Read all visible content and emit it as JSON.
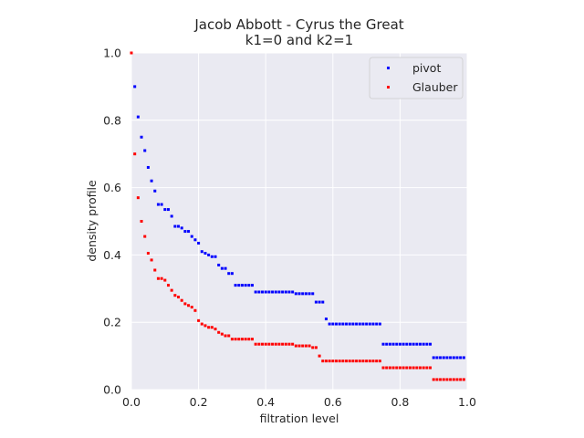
{
  "chart_data": {
    "type": "scatter",
    "title": "Jacob Abbott - Cyrus the Great",
    "subtitle": "k1=0 and k2=1",
    "xlabel": "filtration level",
    "ylabel": "density profile",
    "xlim": [
      0.0,
      1.0
    ],
    "ylim": [
      0.0,
      1.0
    ],
    "xticks": [
      "0.0",
      "0.2",
      "0.4",
      "0.6",
      "0.8",
      "1.0"
    ],
    "yticks": [
      "0.0",
      "0.2",
      "0.4",
      "0.6",
      "0.8",
      "1.0"
    ],
    "grid": true,
    "legend_position": "top-right",
    "background": "#eaeaf2",
    "series": [
      {
        "name": "pivot",
        "color": "#0000ff",
        "x": [
          0.0,
          0.01,
          0.02,
          0.03,
          0.04,
          0.05,
          0.06,
          0.07,
          0.08,
          0.09,
          0.1,
          0.11,
          0.12,
          0.13,
          0.14,
          0.15,
          0.16,
          0.17,
          0.18,
          0.19,
          0.2,
          0.21,
          0.22,
          0.23,
          0.24,
          0.25,
          0.26,
          0.27,
          0.28,
          0.29,
          0.3,
          0.31,
          0.32,
          0.33,
          0.34,
          0.35,
          0.36,
          0.37,
          0.38,
          0.39,
          0.4,
          0.41,
          0.42,
          0.43,
          0.44,
          0.45,
          0.46,
          0.47,
          0.48,
          0.49,
          0.5,
          0.51,
          0.52,
          0.53,
          0.54,
          0.55,
          0.56,
          0.57,
          0.58,
          0.59,
          0.6,
          0.61,
          0.62,
          0.63,
          0.64,
          0.65,
          0.66,
          0.67,
          0.68,
          0.69,
          0.7,
          0.71,
          0.72,
          0.73,
          0.74,
          0.75,
          0.76,
          0.77,
          0.78,
          0.79,
          0.8,
          0.81,
          0.82,
          0.83,
          0.84,
          0.85,
          0.86,
          0.87,
          0.88,
          0.89,
          0.9,
          0.91,
          0.92,
          0.93,
          0.94,
          0.95,
          0.96,
          0.97,
          0.98,
          0.99
        ],
        "y": [
          1.0,
          0.9,
          0.81,
          0.75,
          0.71,
          0.66,
          0.62,
          0.59,
          0.55,
          0.55,
          0.535,
          0.535,
          0.515,
          0.485,
          0.485,
          0.48,
          0.47,
          0.47,
          0.455,
          0.445,
          0.435,
          0.41,
          0.405,
          0.4,
          0.395,
          0.395,
          0.37,
          0.36,
          0.36,
          0.345,
          0.345,
          0.31,
          0.31,
          0.31,
          0.31,
          0.31,
          0.31,
          0.29,
          0.29,
          0.29,
          0.29,
          0.29,
          0.29,
          0.29,
          0.29,
          0.29,
          0.29,
          0.29,
          0.29,
          0.285,
          0.285,
          0.285,
          0.285,
          0.285,
          0.285,
          0.26,
          0.26,
          0.26,
          0.21,
          0.195,
          0.195,
          0.195,
          0.195,
          0.195,
          0.195,
          0.195,
          0.195,
          0.195,
          0.195,
          0.195,
          0.195,
          0.195,
          0.195,
          0.195,
          0.195,
          0.135,
          0.135,
          0.135,
          0.135,
          0.135,
          0.135,
          0.135,
          0.135,
          0.135,
          0.135,
          0.135,
          0.135,
          0.135,
          0.135,
          0.135,
          0.095,
          0.095,
          0.095,
          0.095,
          0.095,
          0.095,
          0.095,
          0.095,
          0.095,
          0.095
        ]
      },
      {
        "name": "Glauber",
        "color": "#ff0000",
        "x": [
          0.0,
          0.01,
          0.02,
          0.03,
          0.04,
          0.05,
          0.06,
          0.07,
          0.08,
          0.09,
          0.1,
          0.11,
          0.12,
          0.13,
          0.14,
          0.15,
          0.16,
          0.17,
          0.18,
          0.19,
          0.2,
          0.21,
          0.22,
          0.23,
          0.24,
          0.25,
          0.26,
          0.27,
          0.28,
          0.29,
          0.3,
          0.31,
          0.32,
          0.33,
          0.34,
          0.35,
          0.36,
          0.37,
          0.38,
          0.39,
          0.4,
          0.41,
          0.42,
          0.43,
          0.44,
          0.45,
          0.46,
          0.47,
          0.48,
          0.49,
          0.5,
          0.51,
          0.52,
          0.53,
          0.54,
          0.55,
          0.56,
          0.57,
          0.58,
          0.59,
          0.6,
          0.61,
          0.62,
          0.63,
          0.64,
          0.65,
          0.66,
          0.67,
          0.68,
          0.69,
          0.7,
          0.71,
          0.72,
          0.73,
          0.74,
          0.75,
          0.76,
          0.77,
          0.78,
          0.79,
          0.8,
          0.81,
          0.82,
          0.83,
          0.84,
          0.85,
          0.86,
          0.87,
          0.88,
          0.89,
          0.9,
          0.91,
          0.92,
          0.93,
          0.94,
          0.95,
          0.96,
          0.97,
          0.98,
          0.99
        ],
        "y": [
          1.0,
          0.7,
          0.57,
          0.5,
          0.455,
          0.405,
          0.385,
          0.355,
          0.33,
          0.33,
          0.325,
          0.31,
          0.295,
          0.28,
          0.275,
          0.265,
          0.255,
          0.25,
          0.245,
          0.235,
          0.205,
          0.195,
          0.19,
          0.185,
          0.185,
          0.18,
          0.17,
          0.165,
          0.16,
          0.16,
          0.15,
          0.15,
          0.15,
          0.15,
          0.15,
          0.15,
          0.15,
          0.135,
          0.135,
          0.135,
          0.135,
          0.135,
          0.135,
          0.135,
          0.135,
          0.135,
          0.135,
          0.135,
          0.135,
          0.13,
          0.13,
          0.13,
          0.13,
          0.13,
          0.125,
          0.125,
          0.1,
          0.085,
          0.085,
          0.085,
          0.085,
          0.085,
          0.085,
          0.085,
          0.085,
          0.085,
          0.085,
          0.085,
          0.085,
          0.085,
          0.085,
          0.085,
          0.085,
          0.085,
          0.085,
          0.065,
          0.065,
          0.065,
          0.065,
          0.065,
          0.065,
          0.065,
          0.065,
          0.065,
          0.065,
          0.065,
          0.065,
          0.065,
          0.065,
          0.065,
          0.03,
          0.03,
          0.03,
          0.03,
          0.03,
          0.03,
          0.03,
          0.03,
          0.03,
          0.03
        ]
      }
    ]
  }
}
